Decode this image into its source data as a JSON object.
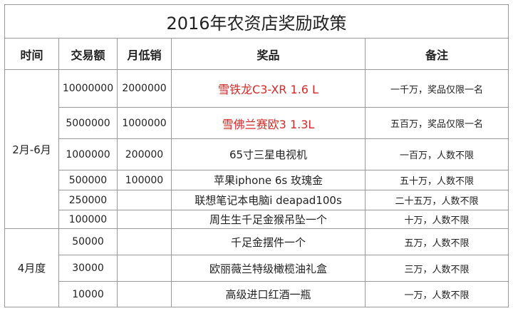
{
  "title": "2016年农资店奖励政策",
  "headers": {
    "time": "时间",
    "volume": "交易额",
    "min_monthly": "月低销",
    "prize": "奖品",
    "note": "备注"
  },
  "periods": [
    "2月-6月",
    "4月度"
  ],
  "rows": [
    {
      "volume": "10000000",
      "min_monthly": "2000000",
      "prize": "雪铁龙C3-XR   1.6 L",
      "note": "一千万，奖品仅限一名",
      "highlight": true
    },
    {
      "volume": "5000000",
      "min_monthly": "1000000",
      "prize": "雪佛兰赛欧3  1.3L",
      "note": "五百万，奖品仅限一名",
      "highlight": true
    },
    {
      "volume": "1000000",
      "min_monthly": "200000",
      "prize": "65寸三星电视机",
      "note": "一百万，人数不限"
    },
    {
      "volume": "500000",
      "min_monthly": "100000",
      "prize": "苹果iphone  6s 玫瑰金",
      "note": "五十万，人数不限"
    },
    {
      "volume": "250000",
      "min_monthly": "",
      "prize": "联想笔记本电脑i deapad100s",
      "note": "二十五万，人数不限"
    },
    {
      "volume": "100000",
      "min_monthly": "",
      "prize": "周生生千足金猴吊坠一个",
      "note": "十万，人数不限"
    },
    {
      "volume": "50000",
      "min_monthly": "",
      "prize": "千足金摆件一个",
      "note": "五万，人数不限"
    },
    {
      "volume": "30000",
      "min_monthly": "",
      "prize": "欧丽薇兰特级橄榄油礼盒",
      "note": "三万，人数不限"
    },
    {
      "volume": "10000",
      "min_monthly": "",
      "prize": "高级进口红酒一瓶",
      "note": "一万，人数不限"
    }
  ],
  "colors": {
    "highlight": "#d42a2a",
    "grid": "#9a9a9a"
  }
}
